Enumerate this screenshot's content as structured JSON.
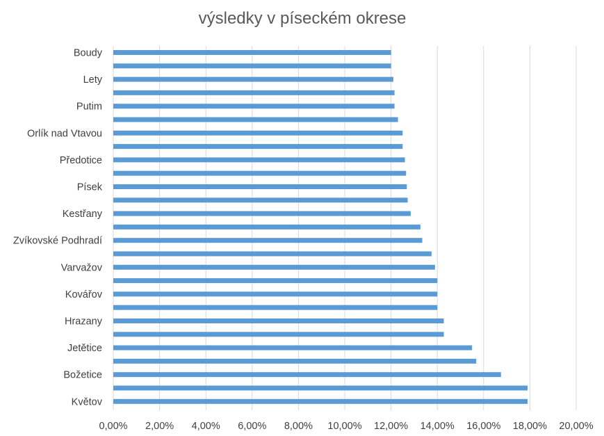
{
  "chart_data": {
    "type": "bar",
    "orientation": "horizontal",
    "title": "výsledky v píseckém okrese",
    "xlabel": "",
    "ylabel": "",
    "xlim": [
      0,
      0.2
    ],
    "x_ticks": [
      0,
      0.02,
      0.04,
      0.06,
      0.08,
      0.1,
      0.12,
      0.14,
      0.16,
      0.18,
      0.2
    ],
    "x_tick_labels": [
      "0,00%",
      "2,00%",
      "4,00%",
      "6,00%",
      "8,00%",
      "10,00%",
      "12,00%",
      "14,00%",
      "16,00%",
      "18,00%",
      "20,00%"
    ],
    "grid": true,
    "legend": false,
    "bar_color": "#5b9bd5",
    "grid_color": "#d9d9d9",
    "categories": [
      "Boudy",
      "",
      "Lety",
      "",
      "Putim",
      "",
      "Orlík nad Vtavou",
      "",
      "Předotice",
      "",
      "Písek",
      "",
      "Kestřany",
      "",
      "Zvíkovské Podhradí",
      "",
      "Varvažov",
      "",
      "Kovářov",
      "",
      "Hrazany",
      "",
      "Jetětice",
      "",
      "Božetice",
      "",
      "Květov"
    ],
    "values": [
      0.12,
      0.12,
      0.121,
      0.1215,
      0.1215,
      0.123,
      0.125,
      0.125,
      0.126,
      0.1265,
      0.1268,
      0.1272,
      0.1285,
      0.1327,
      0.1335,
      0.1375,
      0.139,
      0.14,
      0.14,
      0.14,
      0.1428,
      0.1428,
      0.155,
      0.1568,
      0.1675,
      0.179,
      0.179
    ]
  }
}
